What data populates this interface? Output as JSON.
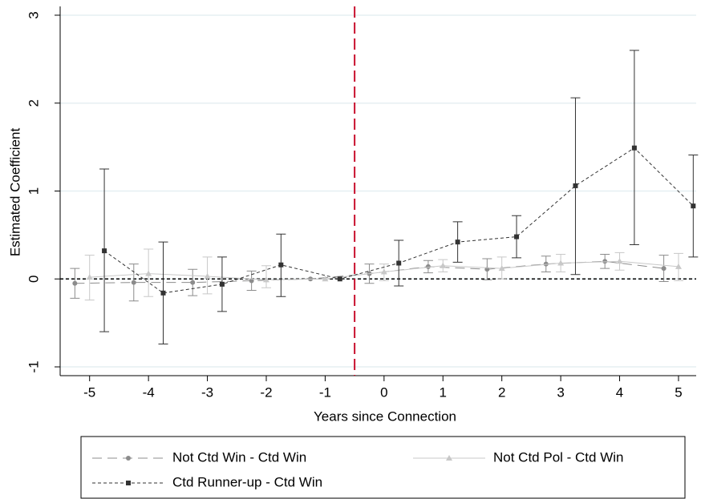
{
  "chart_data": {
    "type": "line",
    "x_label": "Years since Connection",
    "y_label": "Estimated Coefficient",
    "xlim": [
      -5.5,
      5.3
    ],
    "ylim": [
      -1.1,
      3.1
    ],
    "xticks": [
      -5,
      -4,
      -3,
      -2,
      -1,
      0,
      1,
      2,
      3,
      4,
      5
    ],
    "yticks": [
      -1,
      0,
      1,
      2,
      3
    ],
    "grid": true,
    "reference_lines": {
      "y": 0,
      "x": -0.5
    },
    "series": [
      {
        "name": "Not Ctd Win - Ctd Win",
        "color": "#8c8c8c",
        "dash": "12 7",
        "marker": "circle",
        "x": [
          -5.25,
          -4.25,
          -3.25,
          -2.25,
          -1.25,
          -0.25,
          0.75,
          1.75,
          2.75,
          3.75,
          4.75
        ],
        "values": [
          -0.05,
          -0.04,
          -0.04,
          -0.02,
          0,
          0.06,
          0.14,
          0.11,
          0.17,
          0.2,
          0.12
        ],
        "lower": [
          -0.22,
          -0.25,
          -0.19,
          -0.13,
          0,
          -0.05,
          0.07,
          -0.01,
          0.08,
          0.12,
          -0.03
        ],
        "upper": [
          0.12,
          0.17,
          0.11,
          0.09,
          0,
          0.17,
          0.21,
          0.23,
          0.26,
          0.28,
          0.27
        ]
      },
      {
        "name": "Not Ctd Pol - Ctd Win",
        "color": "#c8c8c8",
        "dash": "none",
        "marker": "triangle",
        "x": [
          -5,
          -4,
          -3,
          -2,
          -1,
          0,
          1,
          2,
          3,
          4,
          5
        ],
        "values": [
          0.02,
          0.06,
          0.03,
          -0.01,
          0,
          0.08,
          0.15,
          0.12,
          0.18,
          0.2,
          0.14
        ],
        "lower": [
          -0.24,
          -0.2,
          -0.17,
          -0.1,
          0,
          -0.02,
          0.08,
          0.0,
          0.08,
          0.1,
          -0.02
        ],
        "upper": [
          0.27,
          0.34,
          0.25,
          0.15,
          0,
          0.17,
          0.22,
          0.25,
          0.28,
          0.3,
          0.29
        ]
      },
      {
        "name": "Ctd Runner-up - Ctd Win",
        "color": "#333333",
        "dash": "4 3",
        "marker": "square",
        "x": [
          -4.75,
          -3.75,
          -2.75,
          -1.75,
          -0.75,
          0.25,
          1.25,
          2.25,
          3.25,
          4.25,
          5.25
        ],
        "values": [
          0.32,
          -0.16,
          -0.06,
          0.16,
          0,
          0.18,
          0.42,
          0.48,
          1.06,
          1.49,
          0.83
        ],
        "lower": [
          -0.6,
          -0.74,
          -0.37,
          -0.2,
          0,
          -0.08,
          0.19,
          0.24,
          0.05,
          0.39,
          0.25
        ],
        "upper": [
          1.25,
          0.42,
          0.25,
          0.51,
          0,
          0.44,
          0.65,
          0.72,
          2.06,
          2.6,
          1.41
        ]
      }
    ]
  }
}
